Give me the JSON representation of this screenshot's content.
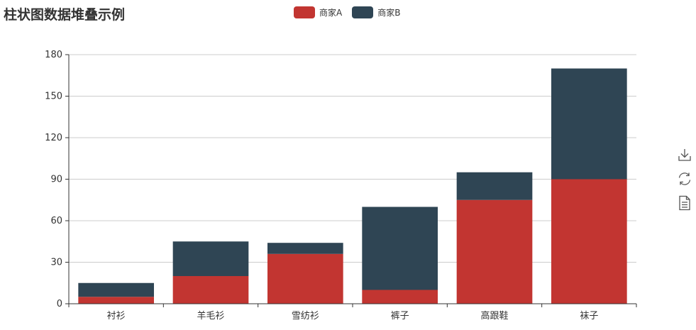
{
  "chart_data": {
    "type": "bar",
    "stacked": true,
    "title": "柱状图数据堆叠示例",
    "categories": [
      "衬衫",
      "羊毛衫",
      "雪纺衫",
      "裤子",
      "高跟鞋",
      "袜子"
    ],
    "series": [
      {
        "name": "商家A",
        "color": "#c23531",
        "values": [
          5,
          20,
          36,
          10,
          75,
          90
        ]
      },
      {
        "name": "商家B",
        "color": "#2f4554",
        "values": [
          10,
          25,
          8,
          60,
          20,
          80
        ]
      }
    ],
    "ylim": [
      0,
      180
    ],
    "yticks": [
      0,
      30,
      60,
      90,
      120,
      150,
      180
    ],
    "grid": true,
    "legend": "top-center"
  },
  "toolbox": {
    "icons": [
      "download-icon",
      "refresh-icon",
      "data-view-icon"
    ]
  }
}
